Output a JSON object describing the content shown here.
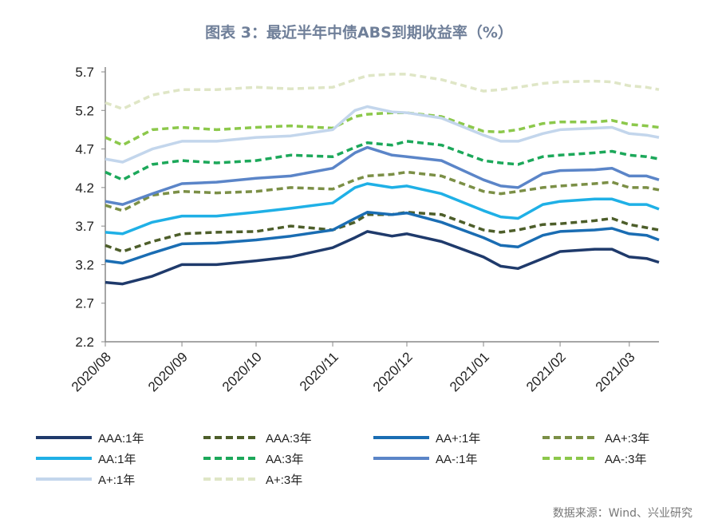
{
  "title": "图表 3：最近半年中债ABS到期收益率（%）",
  "source": "数据来源：Wind、兴业研究",
  "chart_data": {
    "type": "line",
    "title": "图表 3：最近半年中债ABS到期收益率（%）",
    "xlabel": "",
    "ylabel": "",
    "ylim": [
      2.2,
      5.7
    ],
    "yticks": [
      "2.2",
      "2.7",
      "3.2",
      "3.7",
      "4.2",
      "4.7",
      "5.2",
      "5.7"
    ],
    "xlim": [
      "2020-08-01",
      "2021-03-13"
    ],
    "xticks": [
      {
        "date": "2020-08-01",
        "label": "2020/08"
      },
      {
        "date": "2020-09-01",
        "label": "2020/09"
      },
      {
        "date": "2020-10-01",
        "label": "2020/10"
      },
      {
        "date": "2020-11-01",
        "label": "2020/11"
      },
      {
        "date": "2020-12-01",
        "label": "2020/12"
      },
      {
        "date": "2021-01-01",
        "label": "2021/01"
      },
      {
        "date": "2021-02-01",
        "label": "2021/02"
      },
      {
        "date": "2021-03-01",
        "label": "2021/03"
      }
    ],
    "grid": false,
    "legend_placement": "bottom",
    "x": [
      "2020-08-01",
      "2020-08-08",
      "2020-08-20",
      "2020-09-01",
      "2020-09-15",
      "2020-10-01",
      "2020-10-15",
      "2020-11-01",
      "2020-11-10",
      "2020-11-15",
      "2020-11-25",
      "2020-12-01",
      "2020-12-15",
      "2021-01-01",
      "2021-01-08",
      "2021-01-15",
      "2021-01-25",
      "2021-02-01",
      "2021-02-15",
      "2021-02-22",
      "2021-03-01",
      "2021-03-08",
      "2021-03-13"
    ],
    "series": [
      {
        "name": "AAA:1年",
        "color": "#1f3a6b",
        "dash": false,
        "values": [
          2.97,
          2.95,
          3.05,
          3.2,
          3.2,
          3.25,
          3.3,
          3.42,
          3.55,
          3.63,
          3.57,
          3.6,
          3.5,
          3.3,
          3.18,
          3.15,
          3.28,
          3.37,
          3.4,
          3.4,
          3.3,
          3.28,
          3.23
        ]
      },
      {
        "name": "AAA:3年",
        "color": "#4d5e2a",
        "dash": true,
        "values": [
          3.45,
          3.37,
          3.5,
          3.6,
          3.62,
          3.63,
          3.7,
          3.65,
          3.75,
          3.85,
          3.85,
          3.88,
          3.85,
          3.65,
          3.62,
          3.65,
          3.72,
          3.73,
          3.77,
          3.8,
          3.72,
          3.68,
          3.65
        ]
      },
      {
        "name": "AA+:1年",
        "color": "#1a6db3",
        "dash": false,
        "values": [
          3.25,
          3.22,
          3.35,
          3.47,
          3.48,
          3.52,
          3.57,
          3.65,
          3.8,
          3.88,
          3.85,
          3.87,
          3.75,
          3.55,
          3.45,
          3.43,
          3.58,
          3.63,
          3.65,
          3.67,
          3.6,
          3.58,
          3.52
        ]
      },
      {
        "name": "AA+:3年",
        "color": "#7b8f46",
        "dash": true,
        "values": [
          3.97,
          3.9,
          4.1,
          4.15,
          4.13,
          4.15,
          4.2,
          4.18,
          4.3,
          4.35,
          4.37,
          4.4,
          4.35,
          4.15,
          4.12,
          4.15,
          4.2,
          4.22,
          4.25,
          4.27,
          4.2,
          4.2,
          4.17
        ]
      },
      {
        "name": "AA:1年",
        "color": "#1fb0e6",
        "dash": false,
        "values": [
          3.62,
          3.6,
          3.75,
          3.83,
          3.83,
          3.88,
          3.93,
          4.0,
          4.2,
          4.25,
          4.2,
          4.22,
          4.12,
          3.9,
          3.82,
          3.8,
          3.98,
          4.02,
          4.05,
          4.05,
          3.98,
          3.98,
          3.92
        ]
      },
      {
        "name": "AA:3年",
        "color": "#1ca85a",
        "dash": true,
        "values": [
          4.4,
          4.3,
          4.5,
          4.55,
          4.52,
          4.55,
          4.62,
          4.6,
          4.72,
          4.78,
          4.75,
          4.8,
          4.75,
          4.55,
          4.52,
          4.5,
          4.6,
          4.62,
          4.65,
          4.67,
          4.62,
          4.6,
          4.57
        ]
      },
      {
        "name": "AA-:1年",
        "color": "#5b85c8",
        "dash": false,
        "values": [
          4.02,
          3.98,
          4.12,
          4.25,
          4.27,
          4.32,
          4.35,
          4.45,
          4.65,
          4.72,
          4.62,
          4.6,
          4.55,
          4.3,
          4.22,
          4.2,
          4.38,
          4.42,
          4.43,
          4.45,
          4.35,
          4.35,
          4.3
        ]
      },
      {
        "name": "AA-:3年",
        "color": "#8cc84b",
        "dash": true,
        "values": [
          4.85,
          4.75,
          4.95,
          4.98,
          4.95,
          4.98,
          5.0,
          4.97,
          5.12,
          5.15,
          5.17,
          5.17,
          5.12,
          4.93,
          4.92,
          4.95,
          5.03,
          5.05,
          5.05,
          5.07,
          5.02,
          5.0,
          4.98
        ]
      },
      {
        "name": "A+:1年",
        "color": "#c3d6ec",
        "dash": false,
        "values": [
          4.57,
          4.53,
          4.7,
          4.8,
          4.8,
          4.85,
          4.87,
          4.95,
          5.2,
          5.25,
          5.18,
          5.17,
          5.1,
          4.88,
          4.8,
          4.8,
          4.9,
          4.95,
          4.97,
          4.98,
          4.9,
          4.88,
          4.85
        ]
      },
      {
        "name": "A+:3年",
        "color": "#dfe6c6",
        "dash": true,
        "values": [
          5.3,
          5.22,
          5.4,
          5.47,
          5.47,
          5.5,
          5.48,
          5.5,
          5.6,
          5.65,
          5.67,
          5.67,
          5.6,
          5.45,
          5.47,
          5.5,
          5.55,
          5.57,
          5.58,
          5.57,
          5.52,
          5.5,
          5.47
        ]
      }
    ]
  }
}
